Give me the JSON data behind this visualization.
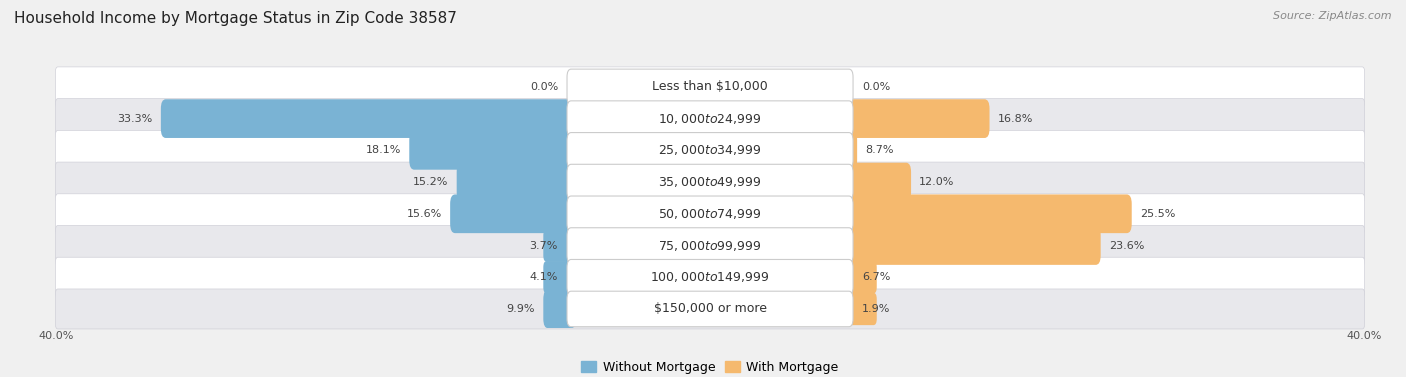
{
  "title": "Household Income by Mortgage Status in Zip Code 38587",
  "source": "Source: ZipAtlas.com",
  "categories": [
    "Less than $10,000",
    "$10,000 to $24,999",
    "$25,000 to $34,999",
    "$35,000 to $49,999",
    "$50,000 to $74,999",
    "$75,000 to $99,999",
    "$100,000 to $149,999",
    "$150,000 or more"
  ],
  "without_mortgage": [
    0.0,
    33.3,
    18.1,
    15.2,
    15.6,
    3.7,
    4.1,
    9.9
  ],
  "with_mortgage": [
    0.0,
    16.8,
    8.7,
    12.0,
    25.5,
    23.6,
    6.7,
    1.9
  ],
  "color_without": "#7ab3d4",
  "color_with": "#f5b96e",
  "axis_limit": 40.0,
  "bg_color": "#f0f0f0",
  "row_bg_even": "#ffffff",
  "row_bg_odd": "#e8e8ec",
  "title_fontsize": 11,
  "source_fontsize": 8,
  "label_fontsize": 8,
  "category_fontsize": 9,
  "legend_fontsize": 9,
  "axis_label_fontsize": 8
}
